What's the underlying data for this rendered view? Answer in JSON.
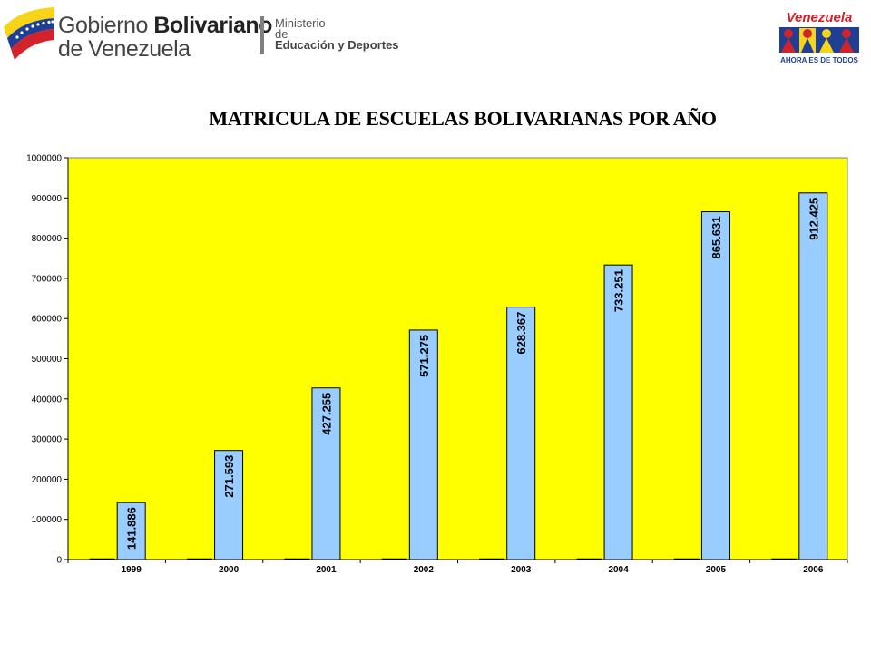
{
  "header": {
    "brand_word1": "Gobierno",
    "brand_word2": "Bolivariano",
    "brand_line2": "de Venezuela",
    "ministry_line1": "Ministerio",
    "ministry_line2": "de",
    "ministry_line3": "Educación y Deportes",
    "right_logo_text": "Venezuela",
    "right_logo_tagline": "AHORA ES DE TODOS"
  },
  "colors": {
    "plot_background": "#ffff00",
    "bar_fill": "#99ccff",
    "bar_stroke": "#000000"
  },
  "chart_data": {
    "type": "bar",
    "title": "MATRICULA DE ESCUELAS BOLIVARIANAS POR AÑO",
    "xlabel": "",
    "ylabel": "",
    "categories": [
      "1999",
      "2000",
      "2001",
      "2002",
      "2003",
      "2004",
      "2005",
      "2006"
    ],
    "values": [
      141886,
      271593,
      427255,
      571275,
      628367,
      733251,
      865631,
      912425
    ],
    "value_labels": [
      "141.886",
      "271.593",
      "427.255",
      "571.275",
      "628.367",
      "733.251",
      "865.631",
      "912.425"
    ],
    "yticks": [
      "0",
      "100000",
      "200000",
      "300000",
      "400000",
      "500000",
      "600000",
      "700000",
      "800000",
      "900000",
      "1000000"
    ],
    "ylim": [
      0,
      1000000
    ],
    "grid": false,
    "legend": "none"
  }
}
